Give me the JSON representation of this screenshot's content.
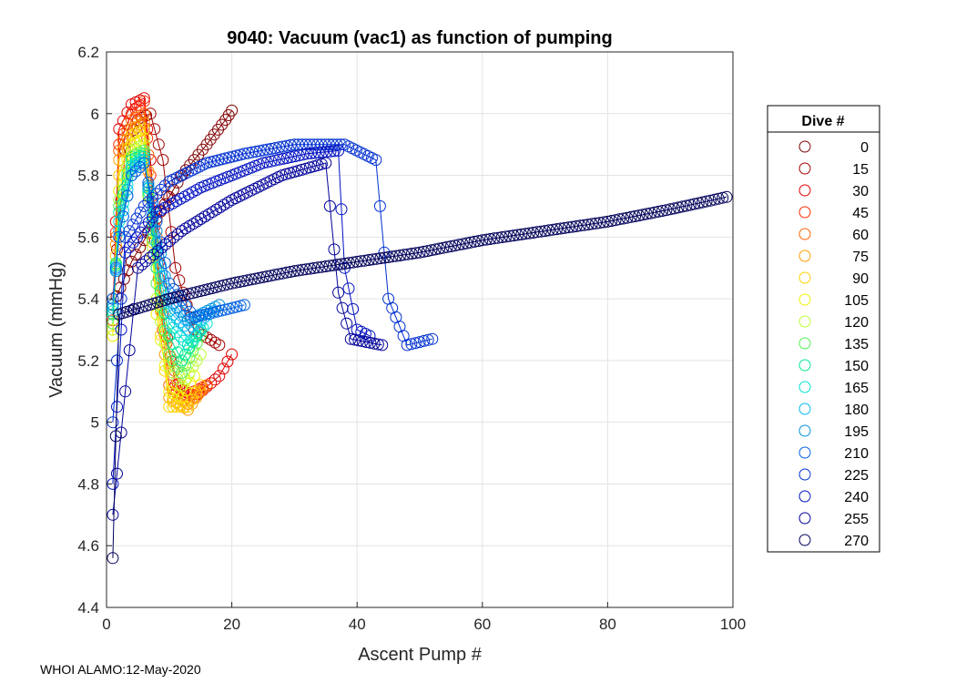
{
  "chart_data": {
    "type": "line",
    "title": "9040: Vacuum (vac1) as function of pumping",
    "xlabel": "Ascent Pump #",
    "ylabel": "Vacuum (mmHg)",
    "xlim": [
      0,
      100
    ],
    "ylim": [
      4.4,
      6.2
    ],
    "xticks": [
      "0",
      "20",
      "40",
      "60",
      "80",
      "100"
    ],
    "yticks": [
      "4.4",
      "4.6",
      "4.8",
      "5",
      "5.2",
      "5.4",
      "5.6",
      "5.8",
      "6",
      "6.2"
    ],
    "grid": true,
    "marker": "circle",
    "legend": {
      "title": "Dive #",
      "placement": "outside-right",
      "entries": [
        "0",
        "15",
        "30",
        "45",
        "60",
        "75",
        "90",
        "105",
        "120",
        "135",
        "150",
        "165",
        "180",
        "195",
        "210",
        "225",
        "240",
        "255",
        "270"
      ]
    },
    "series": [
      {
        "name": "0",
        "color": "#800000",
        "x": [
          1,
          4,
          8,
          12,
          16,
          19,
          20
        ],
        "y": [
          5.38,
          5.52,
          5.66,
          5.8,
          5.9,
          5.98,
          6.01
        ]
      },
      {
        "name": "15",
        "color": "#a00000",
        "x": [
          1,
          3,
          5,
          7,
          9,
          11,
          14,
          18
        ],
        "y": [
          5.4,
          5.88,
          5.98,
          6.0,
          5.85,
          5.5,
          5.3,
          5.25
        ]
      },
      {
        "name": "30",
        "color": "#e00000",
        "x": [
          1,
          2,
          4,
          6,
          7,
          9,
          11,
          14,
          18,
          20
        ],
        "y": [
          5.35,
          5.95,
          6.03,
          6.05,
          5.85,
          5.35,
          5.12,
          5.08,
          5.15,
          5.22
        ]
      },
      {
        "name": "45",
        "color": "#ff2a00",
        "x": [
          1,
          2,
          4,
          6,
          7,
          9,
          12,
          16
        ],
        "y": [
          5.33,
          5.9,
          6.0,
          6.04,
          5.8,
          5.3,
          5.08,
          5.12
        ]
      },
      {
        "name": "60",
        "color": "#ff6000",
        "x": [
          1,
          2,
          4,
          6,
          8,
          10,
          13,
          16
        ],
        "y": [
          5.32,
          5.88,
          5.98,
          6.0,
          5.6,
          5.12,
          5.06,
          5.12
        ]
      },
      {
        "name": "75",
        "color": "#ff9a00",
        "x": [
          1,
          2,
          4,
          6,
          8,
          10,
          13,
          15
        ],
        "y": [
          5.3,
          5.85,
          5.95,
          5.97,
          5.5,
          5.08,
          5.04,
          5.1
        ]
      },
      {
        "name": "90",
        "color": "#ffd000",
        "x": [
          1,
          2,
          4,
          6,
          8,
          10,
          13,
          15
        ],
        "y": [
          5.28,
          5.8,
          5.93,
          5.95,
          5.4,
          5.05,
          5.05,
          5.12
        ]
      },
      {
        "name": "105",
        "color": "#f2f200",
        "x": [
          1,
          2,
          4,
          6,
          8,
          10,
          12,
          14
        ],
        "y": [
          5.28,
          5.75,
          5.9,
          5.92,
          5.35,
          5.1,
          5.08,
          5.15
        ]
      },
      {
        "name": "120",
        "color": "#b8ff30",
        "x": [
          1,
          2,
          4,
          6,
          8,
          10,
          12,
          15
        ],
        "y": [
          5.3,
          5.72,
          5.88,
          5.9,
          5.4,
          5.18,
          5.12,
          5.22
        ]
      },
      {
        "name": "135",
        "color": "#50f050",
        "x": [
          1,
          2,
          4,
          6,
          8,
          10,
          12,
          15
        ],
        "y": [
          5.32,
          5.7,
          5.86,
          5.88,
          5.45,
          5.22,
          5.16,
          5.28
        ]
      },
      {
        "name": "150",
        "color": "#00e890",
        "x": [
          1,
          2,
          4,
          6,
          8,
          10,
          12,
          15
        ],
        "y": [
          5.35,
          5.68,
          5.85,
          5.87,
          5.5,
          5.28,
          5.2,
          5.3
        ]
      },
      {
        "name": "165",
        "color": "#00e0d0",
        "x": [
          1,
          2,
          4,
          6,
          8,
          10,
          13,
          16
        ],
        "y": [
          5.36,
          5.65,
          5.83,
          5.86,
          5.55,
          5.32,
          5.25,
          5.32
        ]
      },
      {
        "name": "180",
        "color": "#00b8f0",
        "x": [
          1,
          2,
          4,
          6,
          8,
          10,
          13,
          17
        ],
        "y": [
          5.37,
          5.62,
          5.82,
          5.85,
          5.58,
          5.36,
          5.3,
          5.36
        ]
      },
      {
        "name": "195",
        "color": "#0090e0",
        "x": [
          1,
          2,
          4,
          6,
          8,
          10,
          13,
          18
        ],
        "y": [
          5.38,
          5.6,
          5.8,
          5.84,
          5.62,
          5.4,
          5.33,
          5.38
        ]
      },
      {
        "name": "210",
        "color": "#0060e0",
        "x": [
          1,
          2,
          4,
          6,
          8,
          10,
          14,
          22
        ],
        "y": [
          5.4,
          5.6,
          5.8,
          5.84,
          5.65,
          5.45,
          5.34,
          5.38
        ]
      },
      {
        "name": "225",
        "color": "#0030d0",
        "x": [
          1,
          3,
          6,
          10,
          16,
          22,
          30,
          38,
          43,
          45,
          48,
          52
        ],
        "y": [
          5.0,
          5.6,
          5.7,
          5.78,
          5.84,
          5.87,
          5.9,
          5.9,
          5.85,
          5.4,
          5.25,
          5.27
        ]
      },
      {
        "name": "240",
        "color": "#0010c0",
        "x": [
          1,
          3,
          8,
          15,
          25,
          32,
          37,
          38,
          40,
          42
        ],
        "y": [
          4.8,
          5.55,
          5.68,
          5.76,
          5.84,
          5.87,
          5.88,
          5.5,
          5.3,
          5.28
        ]
      },
      {
        "name": "255",
        "color": "#000099",
        "x": [
          1,
          5,
          12,
          20,
          28,
          35,
          37,
          39,
          44
        ],
        "y": [
          4.7,
          5.5,
          5.62,
          5.72,
          5.8,
          5.84,
          5.42,
          5.27,
          5.25
        ]
      },
      {
        "name": "270",
        "color": "#00005a",
        "x": [
          1,
          2,
          10,
          20,
          30,
          40,
          50,
          60,
          70,
          80,
          90,
          99
        ],
        "y": [
          4.56,
          5.35,
          5.4,
          5.45,
          5.49,
          5.52,
          5.55,
          5.59,
          5.62,
          5.65,
          5.69,
          5.73
        ]
      }
    ]
  },
  "footer": {
    "text": "WHOI ALAMO:12-May-2020"
  }
}
